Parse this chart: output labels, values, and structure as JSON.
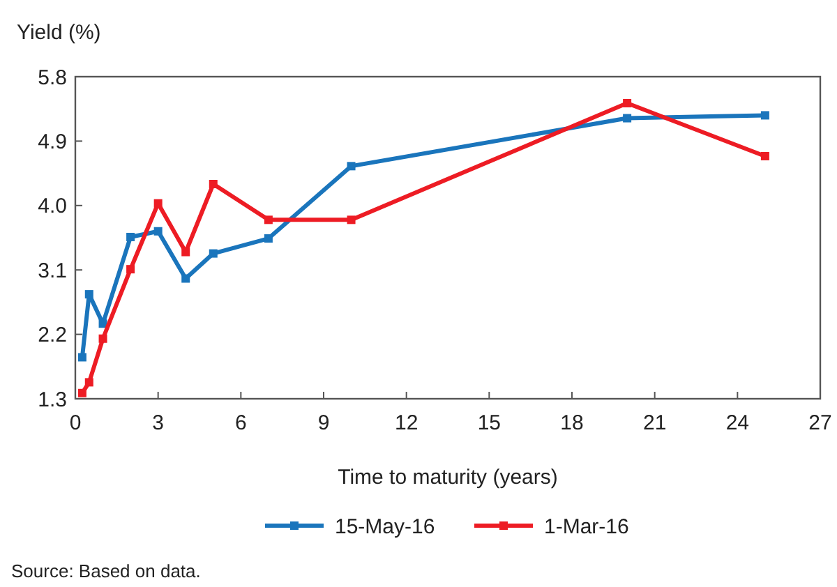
{
  "chart_data": {
    "type": "line",
    "ylabel": "Yield (%)",
    "xlabel": "Time to maturity (years)",
    "x": [
      0.25,
      0.5,
      1,
      2,
      3,
      4,
      5,
      7,
      10,
      20,
      25
    ],
    "series": [
      {
        "name": "15-May-16",
        "color": "#1a75bc",
        "values": [
          1.88,
          2.76,
          2.35,
          3.56,
          3.64,
          2.98,
          3.33,
          3.54,
          4.55,
          5.22,
          5.26
        ]
      },
      {
        "name": "1-Mar-16",
        "color": "#ed1c24",
        "values": [
          1.38,
          1.53,
          2.14,
          3.11,
          4.03,
          3.35,
          4.3,
          3.8,
          3.8,
          5.43,
          4.69
        ]
      }
    ],
    "xlim": [
      0,
      27
    ],
    "xticks": [
      0,
      3,
      6,
      9,
      12,
      15,
      18,
      21,
      24,
      27
    ],
    "ylim": [
      1.3,
      5.8
    ],
    "yticks": [
      1.3,
      2.2,
      3.1,
      {
        "value": 4,
        "label": "4.0"
      },
      4.9,
      5.8
    ],
    "marker": "square",
    "legend": "bottom",
    "grid": false,
    "annotations": [
      "Source: Based on data."
    ]
  }
}
